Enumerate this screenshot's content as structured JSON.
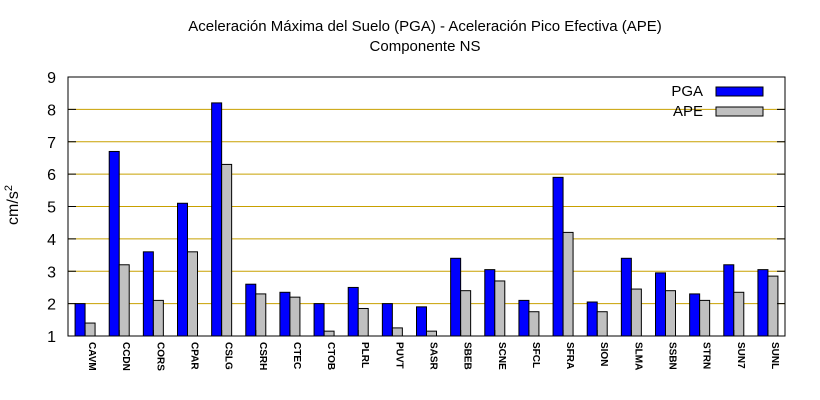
{
  "chart_data": {
    "type": "bar",
    "title": "Aceleración Máxima del Suelo (PGA) -  Aceleración Pico Efectiva (APE)",
    "subtitle": "Componente NS",
    "xlabel": "",
    "ylabel": "cm/s",
    "ylabel_sup": "2",
    "ylim": [
      1,
      9
    ],
    "yticks": [
      "1",
      "2",
      "3",
      "4",
      "5",
      "6",
      "7",
      "8",
      "9"
    ],
    "grid": true,
    "legend_position": "top-right",
    "categories": [
      "CAVM",
      "CCDN",
      "CORS",
      "CPAR",
      "CSLG",
      "CSRH",
      "CTEC",
      "CTOB",
      "PLRL",
      "PUVT",
      "SASR",
      "SBEB",
      "SCNE",
      "SFCL",
      "SFRA",
      "SION",
      "SLMA",
      "SSBN",
      "STRN",
      "SUN7",
      "SUNL"
    ],
    "series": [
      {
        "name": "PGA",
        "color": "#0000ff",
        "values": [
          2.0,
          6.7,
          3.6,
          5.1,
          8.2,
          2.6,
          2.35,
          2.0,
          2.5,
          2.0,
          1.9,
          3.4,
          3.05,
          2.1,
          5.9,
          2.05,
          3.4,
          2.95,
          2.3,
          3.2,
          3.05
        ]
      },
      {
        "name": "APE",
        "color": "#c0c0c0",
        "values": [
          1.4,
          3.2,
          2.1,
          3.6,
          6.3,
          2.3,
          2.2,
          1.15,
          1.85,
          1.25,
          1.15,
          2.4,
          2.7,
          1.75,
          4.2,
          1.75,
          2.45,
          2.4,
          2.1,
          2.35,
          2.85
        ]
      }
    ],
    "colors": {
      "grid": "#c8a000",
      "axis": "#000000"
    }
  }
}
